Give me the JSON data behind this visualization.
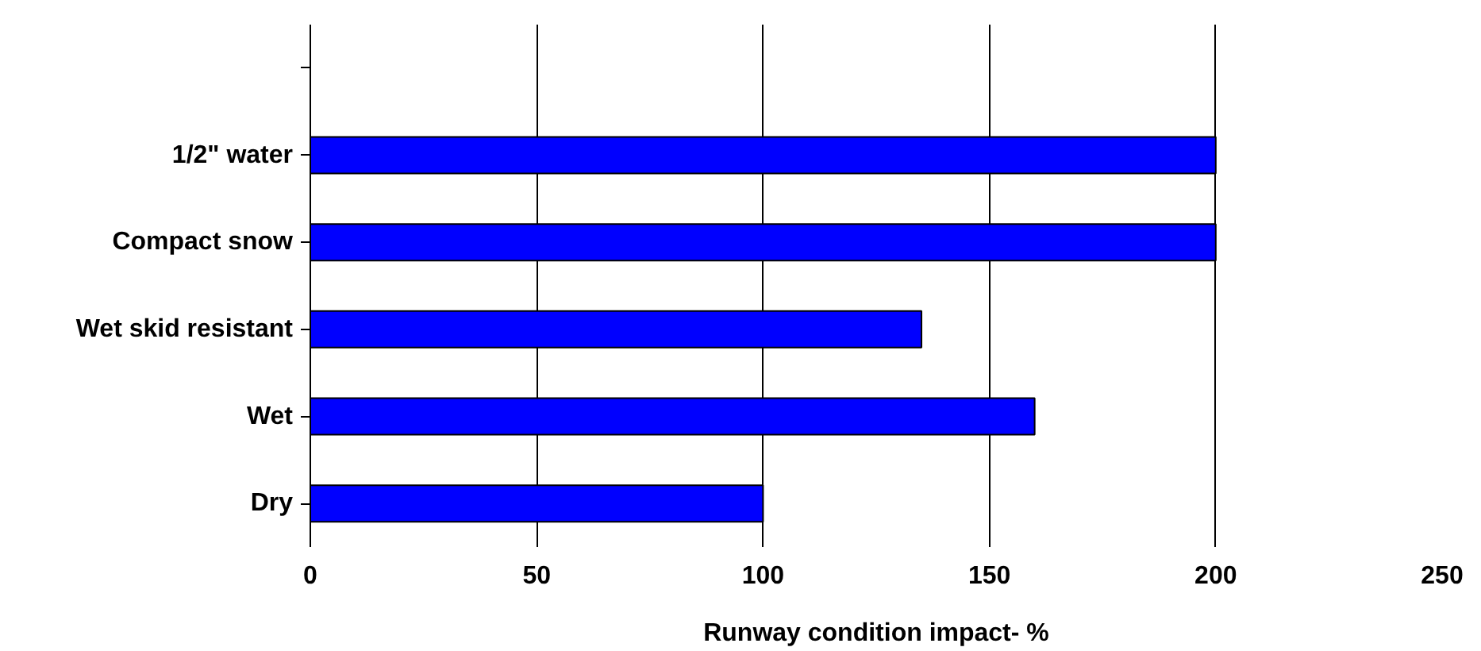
{
  "chart_data": {
    "type": "bar",
    "orientation": "horizontal",
    "categories": [
      null,
      "1/2\" water",
      "Compact snow",
      "Wet skid resistant",
      "Wet",
      "Dry"
    ],
    "values": [
      null,
      200,
      200,
      135,
      160,
      100
    ],
    "color": "#0000ff",
    "xlabel": "Runway condition impact- %",
    "xlim": [
      0,
      250
    ],
    "xticks": [
      0,
      50,
      100,
      150,
      200,
      250
    ],
    "grid": "x"
  }
}
